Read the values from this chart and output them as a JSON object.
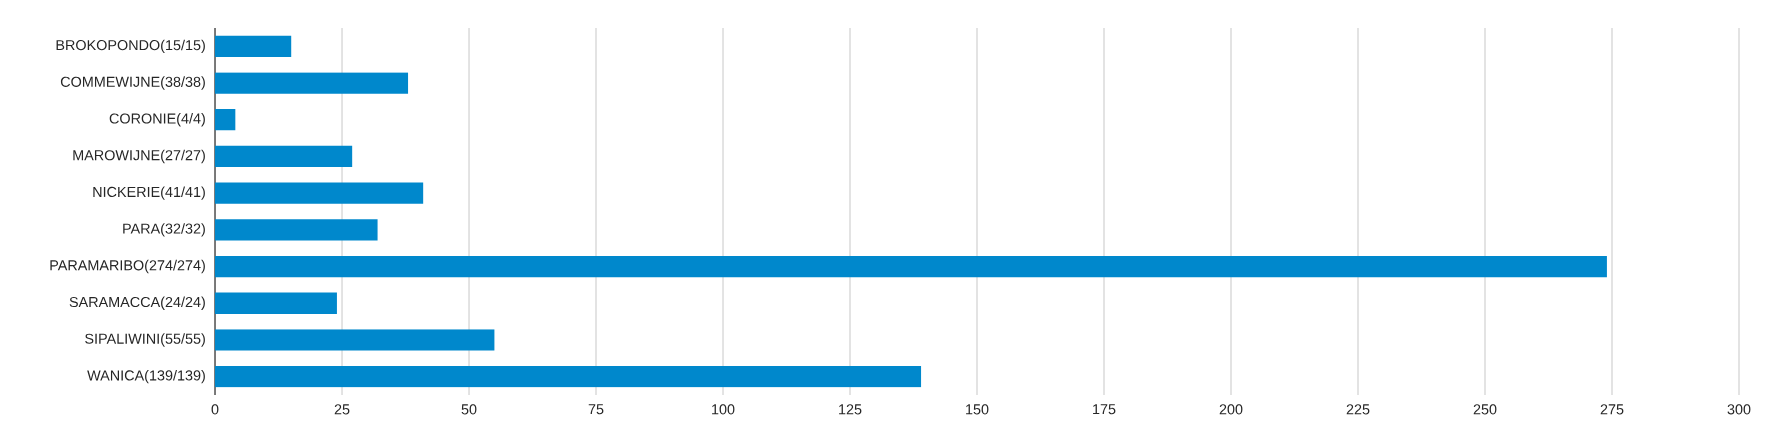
{
  "chart_data": {
    "type": "bar",
    "orientation": "horizontal",
    "categories": [
      "BROKOPONDO(15/15)",
      "COMMEWIJNE(38/38)",
      "CORONIE(4/4)",
      "MAROWIJNE(27/27)",
      "NICKERIE(41/41)",
      "PARA(32/32)",
      "PARAMARIBO(274/274)",
      "SARAMACCA(24/24)",
      "SIPALIWINI(55/55)",
      "WANICA(139/139)"
    ],
    "values": [
      15,
      38,
      4,
      27,
      41,
      32,
      274,
      24,
      55,
      139
    ],
    "color": "#0088cc",
    "xlim": [
      0,
      300
    ],
    "xticks": [
      0,
      25,
      50,
      75,
      100,
      125,
      150,
      175,
      200,
      225,
      250,
      275,
      300
    ],
    "grid": "x"
  }
}
